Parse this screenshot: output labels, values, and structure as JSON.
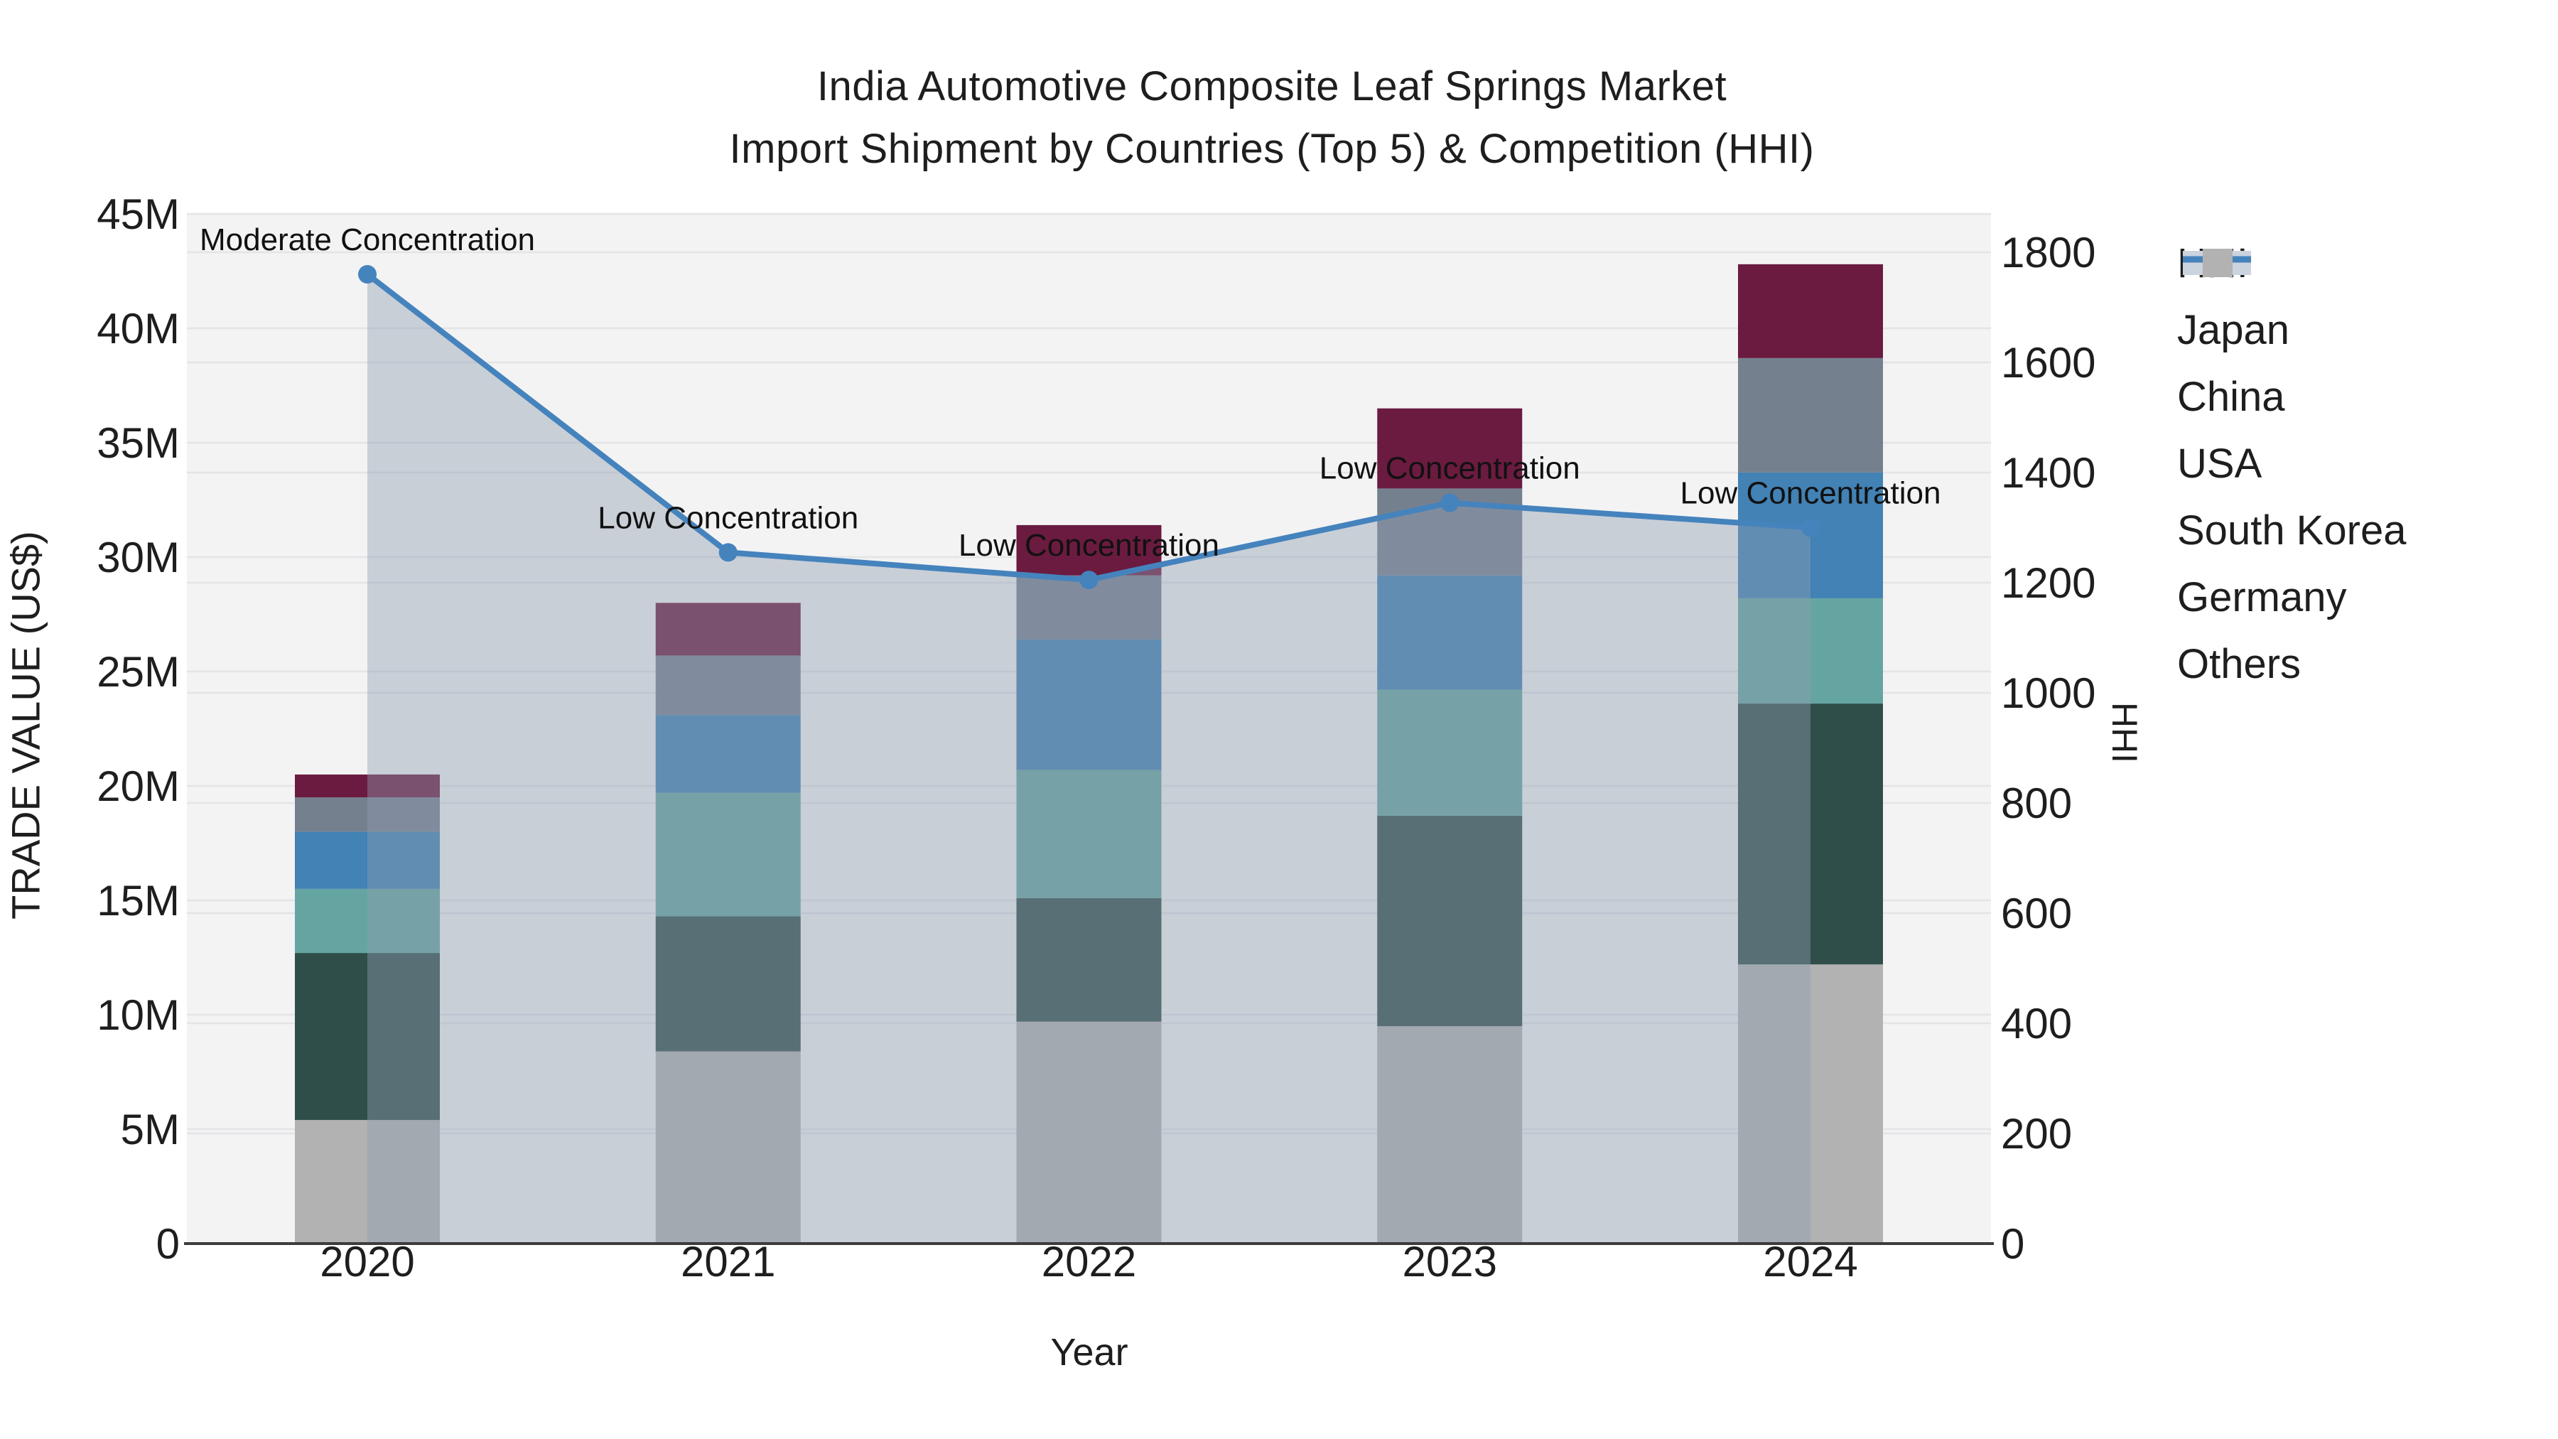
{
  "figure": {
    "title_line1": "India Automotive Composite Leaf Springs Market",
    "title_line2": "Import Shipment by Countries (Top 5) & Competition (HHI)",
    "x_axis_title": "Year",
    "y_axis_left_title": "TRADE VALUE (US$)",
    "y_axis_right_title": "HHI"
  },
  "legend": {
    "items": [
      {
        "label": "HHI",
        "type": "line",
        "color": "#4583BD",
        "band_color": "#CBD3DE"
      },
      {
        "label": "Japan",
        "type": "bar",
        "color": "#6B1B40"
      },
      {
        "label": "China",
        "type": "bar",
        "color": "#75808F"
      },
      {
        "label": "USA",
        "type": "bar",
        "color": "#4282B4"
      },
      {
        "label": "South Korea",
        "type": "bar",
        "color": "#65A5A1"
      },
      {
        "label": "Germany",
        "type": "bar",
        "color": "#2F4E4A"
      },
      {
        "label": "Others",
        "type": "bar",
        "color": "#B2B2B2"
      }
    ]
  },
  "chart_data": {
    "type": "bar",
    "subtype": "stacked-bar-with-line",
    "title": "India Automotive Composite Leaf Springs Market — Import Shipment by Countries (Top 5) & Competition (HHI)",
    "categories": [
      "2020",
      "2021",
      "2022",
      "2023",
      "2024"
    ],
    "unit": "Million US$",
    "stack_order_bottom_to_top": [
      "Others",
      "Germany",
      "South Korea",
      "USA",
      "China",
      "Japan"
    ],
    "series": [
      {
        "name": "Others",
        "color": "#B2B2B2",
        "values": [
          5.4,
          8.4,
          9.7,
          9.5,
          12.2
        ]
      },
      {
        "name": "Germany",
        "color": "#2F4E4A",
        "values": [
          7.3,
          5.9,
          5.4,
          9.2,
          11.4
        ]
      },
      {
        "name": "South Korea",
        "color": "#65A5A1",
        "values": [
          2.8,
          5.4,
          5.6,
          5.5,
          4.6
        ]
      },
      {
        "name": "USA",
        "color": "#4282B4",
        "values": [
          2.5,
          3.4,
          5.7,
          5.0,
          5.5
        ]
      },
      {
        "name": "China",
        "color": "#75808F",
        "values": [
          1.5,
          2.6,
          2.8,
          3.8,
          5.0
        ]
      },
      {
        "name": "Japan",
        "color": "#6B1B40",
        "values": [
          1.0,
          2.3,
          2.2,
          3.5,
          4.1
        ]
      }
    ],
    "bar_totals": [
      20.5,
      28.0,
      31.4,
      36.5,
      42.8
    ],
    "line_series": {
      "name": "HHI",
      "axis": "right",
      "color": "#4583BD",
      "fill_to_zero": true,
      "fill_color": "rgba(144,158,177,0.42)",
      "values": [
        1760,
        1255,
        1205,
        1345,
        1300
      ]
    },
    "annotations": [
      {
        "x": "2020",
        "text": "Moderate Concentration"
      },
      {
        "x": "2021",
        "text": "Low Concentration"
      },
      {
        "x": "2022",
        "text": "Low Concentration"
      },
      {
        "x": "2023",
        "text": "Low Concentration"
      },
      {
        "x": "2024",
        "text": "Low Concentration"
      }
    ],
    "xlabel": "Year",
    "ylabel_left": "TRADE VALUE (US$)",
    "ylabel_right": "HHI",
    "y_left_axis": {
      "range": [
        0,
        45
      ],
      "tick_values": [
        0,
        5,
        10,
        15,
        20,
        25,
        30,
        35,
        40,
        45
      ],
      "tick_labels": [
        "0",
        "5M",
        "10M",
        "15M",
        "20M",
        "25M",
        "30M",
        "35M",
        "40M",
        "45M"
      ]
    },
    "y_right_axis": {
      "range": [
        0,
        1870
      ],
      "tick_values": [
        0,
        200,
        400,
        600,
        800,
        1000,
        1200,
        1400,
        1600,
        1800
      ],
      "tick_labels": [
        "0",
        "200",
        "400",
        "600",
        "800",
        "1000",
        "1200",
        "1400",
        "1600",
        "1800"
      ]
    },
    "grid": true,
    "legend_position": "right"
  },
  "colors": {
    "page_bg": "#FFFFFF",
    "plot_bg": "#F3F3F3",
    "gridline": "#E3E4E8",
    "axis_line": "#3C3C3C",
    "text": "#1E1E1E",
    "annotation_text": "#111111"
  }
}
